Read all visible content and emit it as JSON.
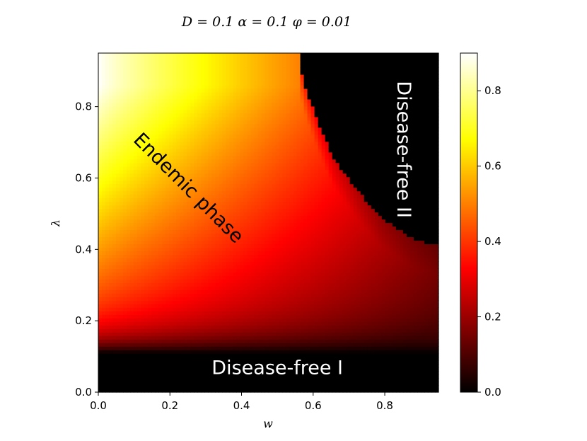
{
  "chart_data": {
    "type": "heatmap",
    "title": "D = 0.1 α = 0.1 φ = 0.01",
    "xlabel": "w",
    "ylabel": "λ",
    "xlim": [
      0.0,
      0.95
    ],
    "ylim": [
      0.0,
      0.95
    ],
    "x_ticks": [
      "0.0",
      "0.2",
      "0.4",
      "0.6",
      "0.8"
    ],
    "x_tick_values": [
      0.0,
      0.2,
      0.4,
      0.6,
      0.8
    ],
    "y_ticks": [
      "0.0",
      "0.2",
      "0.4",
      "0.6",
      "0.8"
    ],
    "y_tick_values": [
      0.0,
      0.2,
      0.4,
      0.6,
      0.8
    ],
    "colormap": "hot",
    "colorbar": {
      "range": [
        0.0,
        0.9
      ],
      "ticks": [
        "0.0",
        "0.2",
        "0.4",
        "0.6",
        "0.8"
      ],
      "tick_values": [
        0.0,
        0.2,
        0.4,
        0.6,
        0.8
      ]
    },
    "grid": false,
    "phase_boundaries": {
      "disease_free_I_lambda_max": 0.11,
      "disease_free_II_boundary": [
        {
          "w": 0.56,
          "lambda": 0.95
        },
        {
          "w": 0.57,
          "lambda": 0.88
        },
        {
          "w": 0.59,
          "lambda": 0.82
        },
        {
          "w": 0.62,
          "lambda": 0.74
        },
        {
          "w": 0.66,
          "lambda": 0.65
        },
        {
          "w": 0.72,
          "lambda": 0.57
        },
        {
          "w": 0.79,
          "lambda": 0.49
        },
        {
          "w": 0.88,
          "lambda": 0.43
        },
        {
          "w": 0.95,
          "lambda": 0.41
        }
      ]
    },
    "annotations": [
      {
        "text": "Endemic phase",
        "w": 0.25,
        "lambda": 0.57,
        "rotation": 45,
        "color": "#000000"
      },
      {
        "text": "Disease-free II",
        "w": 0.85,
        "lambda": 0.68,
        "rotation": 90,
        "color": "#ffffff"
      },
      {
        "text": "Disease-free I",
        "w": 0.5,
        "lambda": 0.065,
        "rotation": 0,
        "color": "#ffffff"
      }
    ]
  }
}
